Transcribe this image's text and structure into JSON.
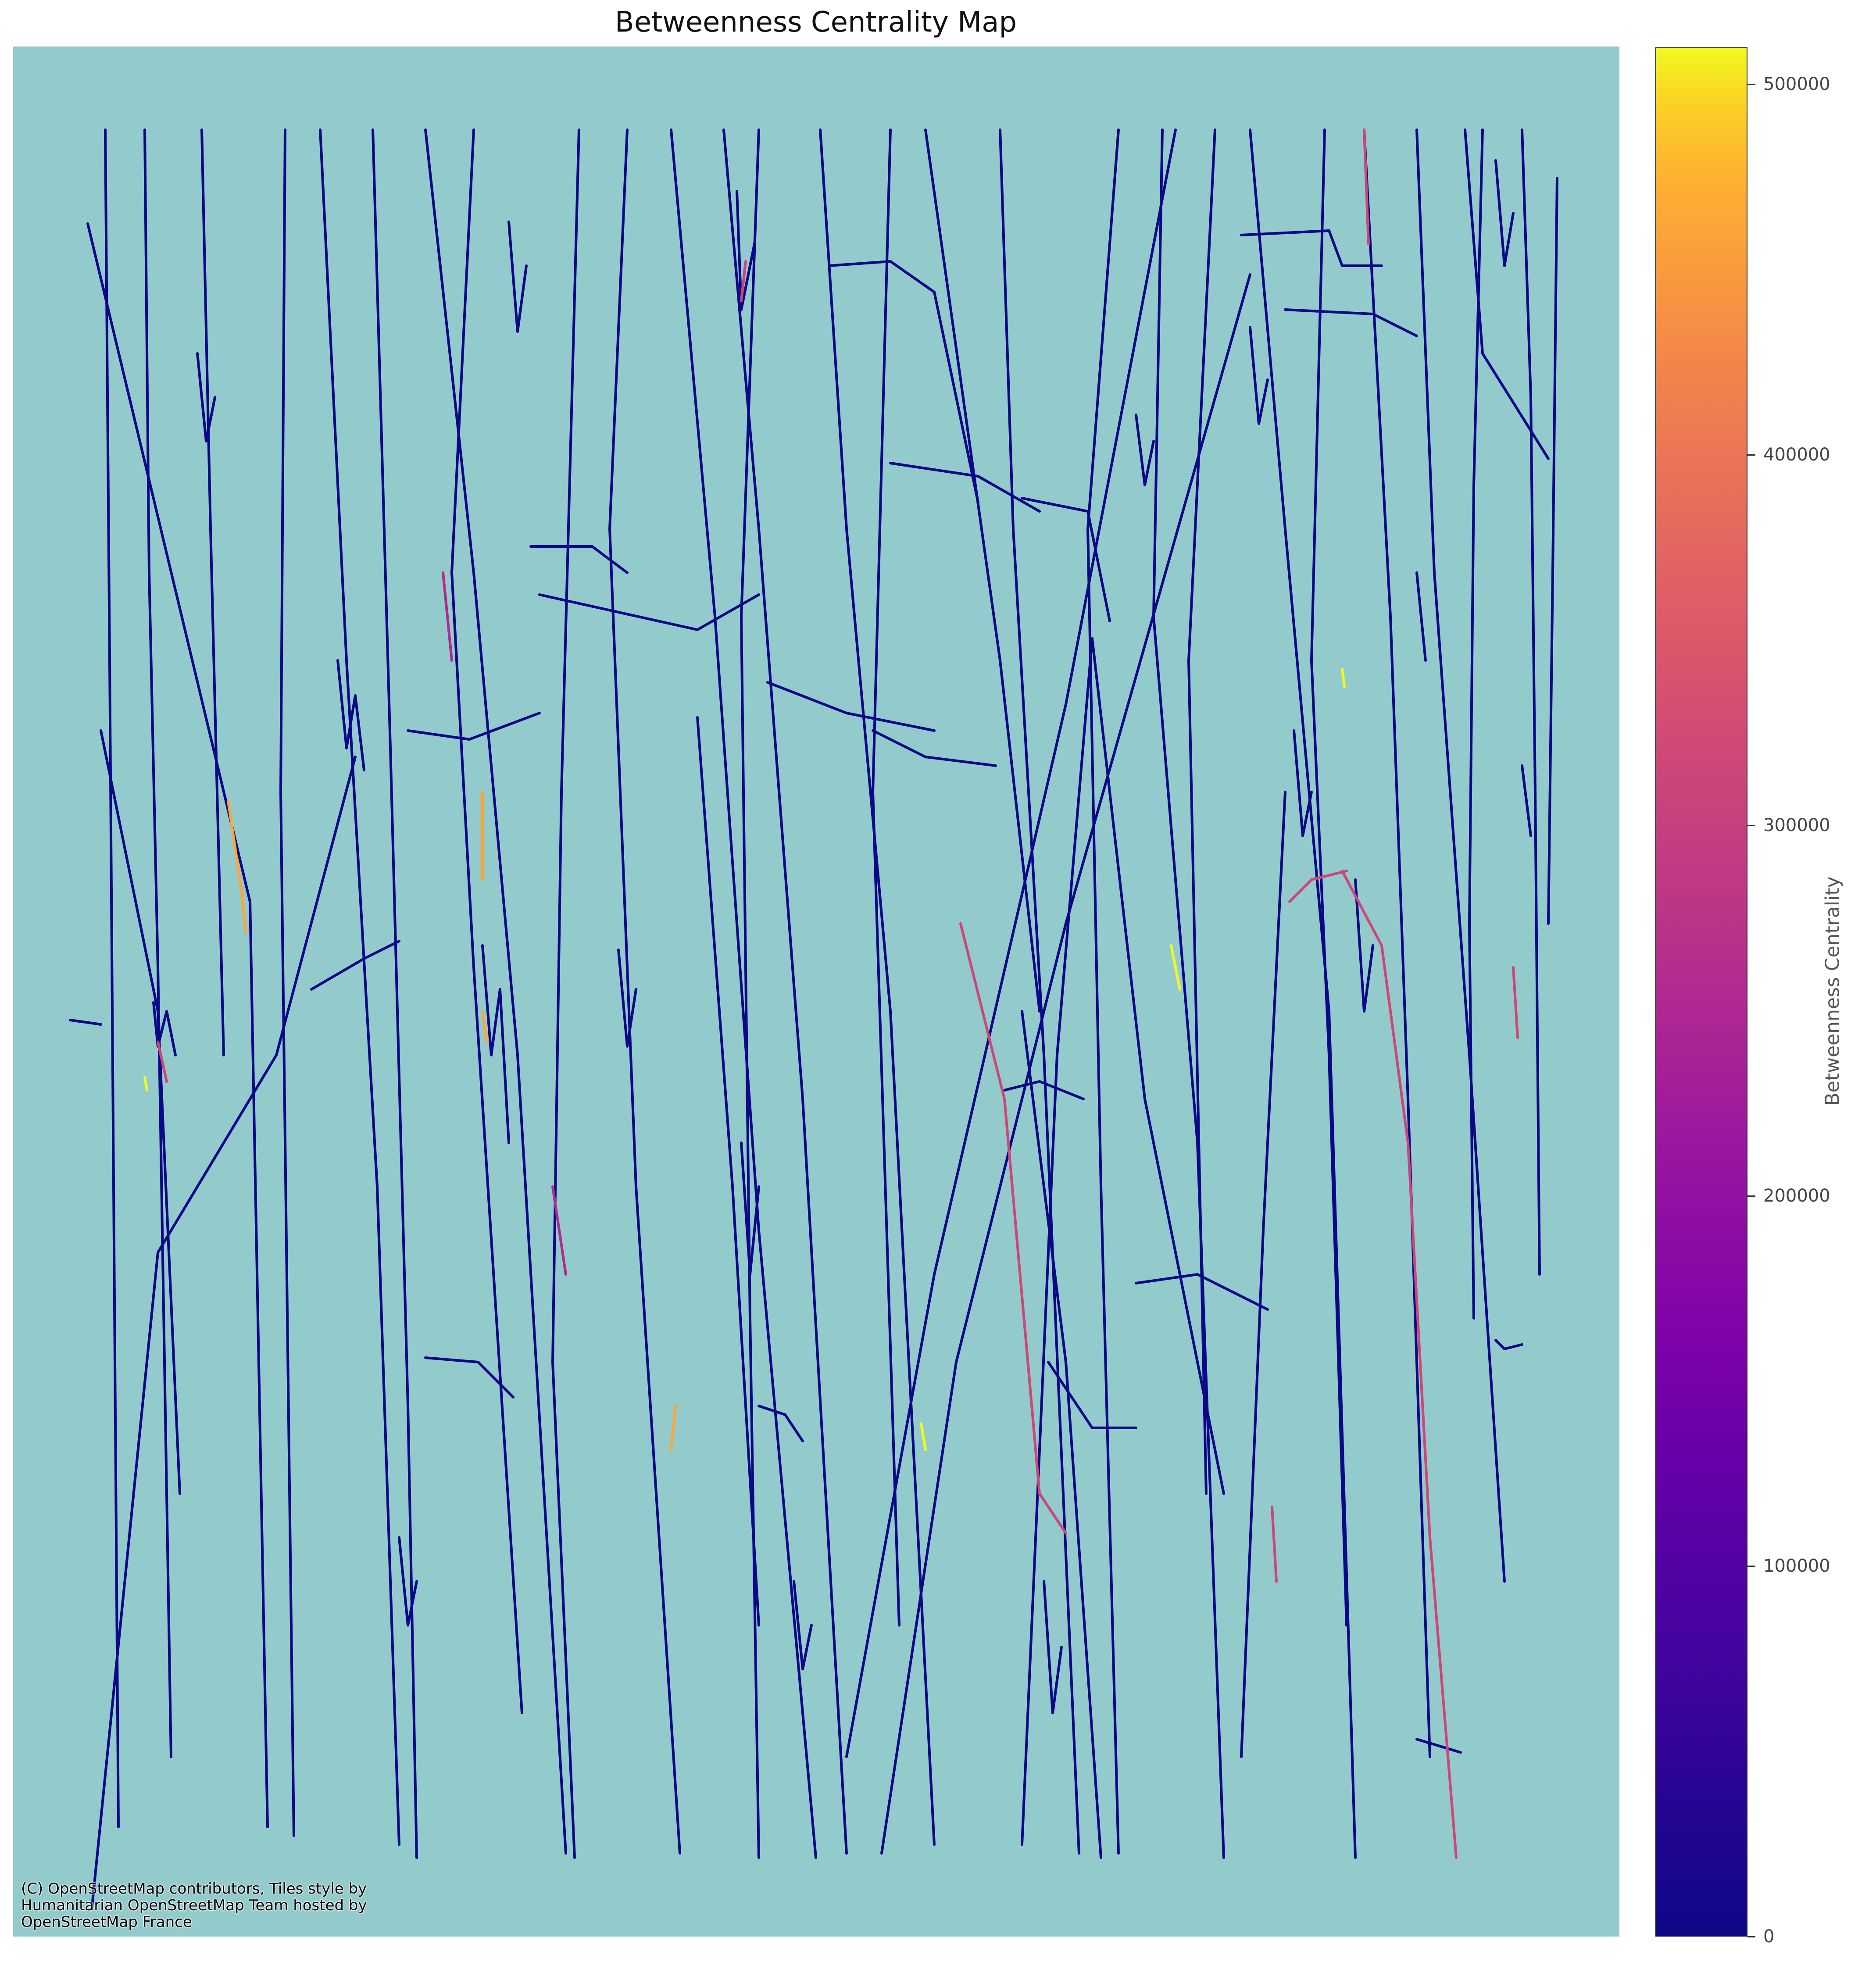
{
  "title": "Betweenness Centrality Map",
  "attribution": "(C) OpenStreetMap contributors, Tiles style by\nHumanitarian OpenStreetMap Team hosted by\nOpenStreetMap France",
  "colors": {
    "map_background": "#93cbcc",
    "edge_low": "#0d0887",
    "edge_mid": "#cc4778",
    "edge_high": "#f0f921"
  },
  "colorbar": {
    "label": "Betweenness Centrality",
    "colormap": "plasma",
    "range": [
      0,
      510000
    ],
    "ticks": [
      {
        "value": 0,
        "label": "0"
      },
      {
        "value": 100000,
        "label": "100000"
      },
      {
        "value": 200000,
        "label": "200000"
      },
      {
        "value": 300000,
        "label": "300000"
      },
      {
        "value": 400000,
        "label": "400000"
      },
      {
        "value": 500000,
        "label": "500000"
      }
    ]
  }
}
